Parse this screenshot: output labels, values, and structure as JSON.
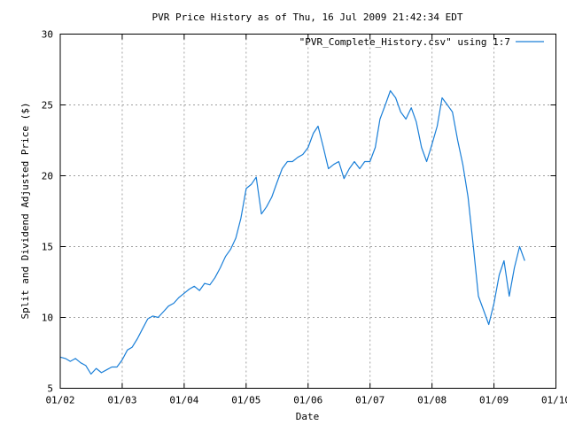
{
  "chart_data": {
    "type": "line",
    "title": "PVR Price History as of Thu, 16 Jul 2009 21:42:34 EDT",
    "xlabel": "Date",
    "ylabel": "Split and Dividend Adjusted Price ($)",
    "x_tick_labels": [
      "01/02",
      "01/03",
      "01/04",
      "01/05",
      "01/06",
      "01/07",
      "01/08",
      "01/09",
      "01/10"
    ],
    "x_range": [
      "2002-01-01",
      "2010-01-01"
    ],
    "y_tick_labels": [
      "5",
      "10",
      "15",
      "20",
      "25",
      "30"
    ],
    "ylim": [
      5,
      30
    ],
    "grid": true,
    "legend_position": "top-right",
    "series": [
      {
        "name": "\"PVR_Complete_History.csv\" using 1:7",
        "color": "#1a7fd8",
        "x": [
          "2002-01-01",
          "2002-02-01",
          "2002-03-01",
          "2002-04-01",
          "2002-05-01",
          "2002-06-01",
          "2002-07-01",
          "2002-08-01",
          "2002-09-01",
          "2002-10-01",
          "2002-11-01",
          "2002-12-01",
          "2003-01-01",
          "2003-02-01",
          "2003-03-01",
          "2003-04-01",
          "2003-05-01",
          "2003-06-01",
          "2003-07-01",
          "2003-08-01",
          "2003-09-01",
          "2003-10-01",
          "2003-11-01",
          "2003-12-01",
          "2004-01-01",
          "2004-02-01",
          "2004-03-01",
          "2004-04-01",
          "2004-05-01",
          "2004-06-01",
          "2004-07-01",
          "2004-08-01",
          "2004-09-01",
          "2004-10-01",
          "2004-11-01",
          "2004-12-01",
          "2005-01-01",
          "2005-02-01",
          "2005-03-01",
          "2005-04-01",
          "2005-05-01",
          "2005-06-01",
          "2005-07-01",
          "2005-08-01",
          "2005-09-01",
          "2005-10-01",
          "2005-11-01",
          "2005-12-01",
          "2006-01-01",
          "2006-02-01",
          "2006-03-01",
          "2006-04-01",
          "2006-05-01",
          "2006-06-01",
          "2006-07-01",
          "2006-08-01",
          "2006-09-01",
          "2006-10-01",
          "2006-11-01",
          "2006-12-01",
          "2007-01-01",
          "2007-02-01",
          "2007-03-01",
          "2007-04-01",
          "2007-05-01",
          "2007-06-01",
          "2007-07-01",
          "2007-08-01",
          "2007-09-01",
          "2007-10-01",
          "2007-11-01",
          "2007-12-01",
          "2008-01-01",
          "2008-02-01",
          "2008-03-01",
          "2008-04-01",
          "2008-05-01",
          "2008-06-01",
          "2008-07-01",
          "2008-08-01",
          "2008-09-01",
          "2008-10-01",
          "2008-11-01",
          "2008-12-01",
          "2009-01-01",
          "2009-02-01",
          "2009-03-01",
          "2009-04-01",
          "2009-05-01",
          "2009-06-01",
          "2009-07-01"
        ],
        "values": [
          7.2,
          7.1,
          6.9,
          7.1,
          6.8,
          6.6,
          6.0,
          6.4,
          6.1,
          6.3,
          6.5,
          6.5,
          7.0,
          7.7,
          7.9,
          8.5,
          9.2,
          9.9,
          10.1,
          10.0,
          10.4,
          10.8,
          11.0,
          11.4,
          11.7,
          12.0,
          12.2,
          11.9,
          12.4,
          12.3,
          12.8,
          13.5,
          14.3,
          14.8,
          15.6,
          17.0,
          19.1,
          19.4,
          19.9,
          17.3,
          17.8,
          18.5,
          19.5,
          20.5,
          21.0,
          21.0,
          21.3,
          21.5,
          22.0,
          23.0,
          23.5,
          22.0,
          20.5,
          20.8,
          21.0,
          19.8,
          20.5,
          21.0,
          20.5,
          21.0,
          21.0,
          22.0,
          24.0,
          25.0,
          26.0,
          25.5,
          24.5,
          24.0,
          24.8,
          23.8,
          22.0,
          21.0,
          22.2,
          23.5,
          25.5,
          25.0,
          24.5,
          22.5,
          20.8,
          18.5,
          15.0,
          11.5,
          10.5,
          9.5,
          11.0,
          13.0,
          14.0,
          11.5,
          13.5,
          15.0,
          14.0
        ]
      }
    ]
  }
}
